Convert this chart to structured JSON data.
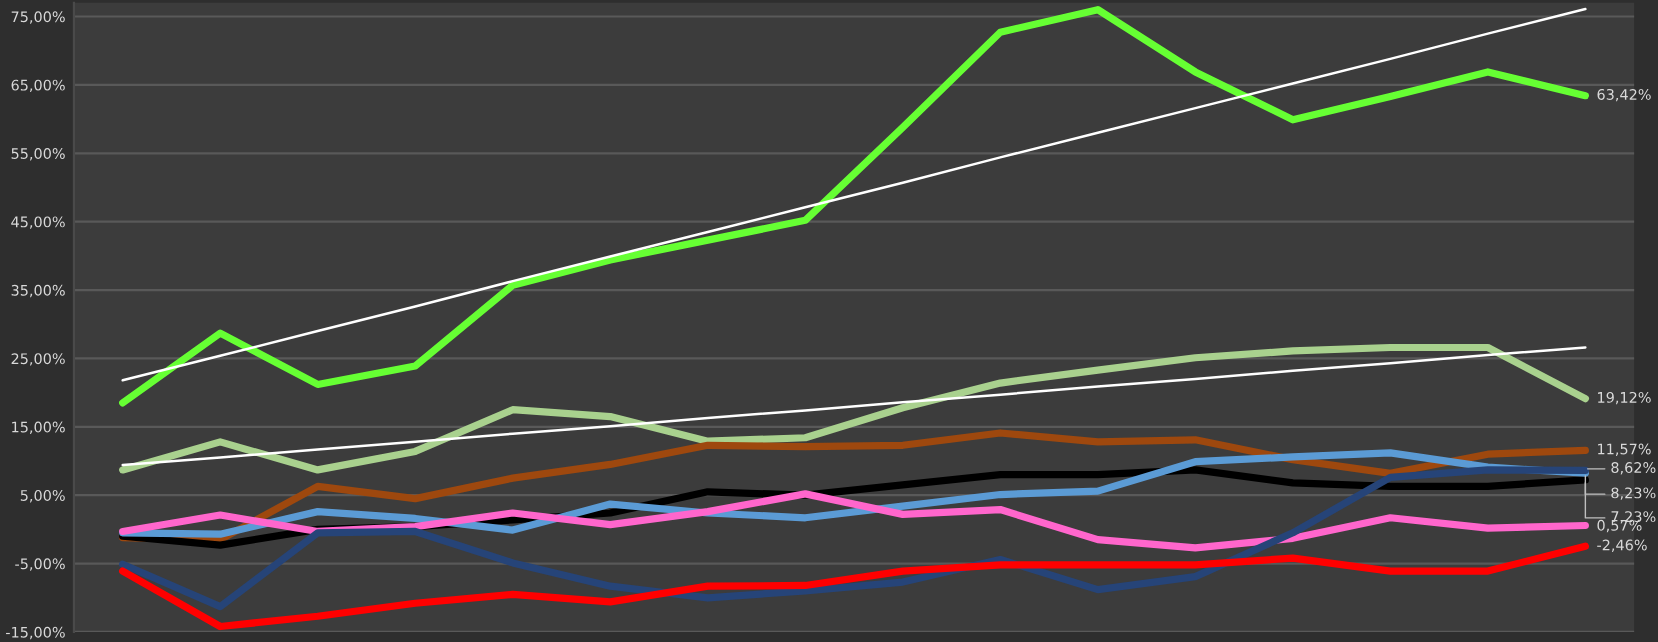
{
  "chart_data": {
    "type": "line",
    "categories": [
      null,
      null,
      null,
      null,
      null,
      null,
      null,
      null,
      null,
      null,
      null,
      null,
      null,
      null,
      null,
      null
    ],
    "series": [
      {
        "color": "#ffffff",
        "values": [
          21.8,
          25.4,
          29.0,
          32.6,
          36.3,
          39.9,
          43.5,
          47.1,
          50.7,
          54.4,
          58.0,
          61.6,
          65.2,
          68.8,
          72.5,
          76.1
        ]
      },
      {
        "color": "#ffffff",
        "values": [
          9.4,
          10.5,
          11.7,
          12.8,
          14.0,
          15.1,
          16.3,
          17.4,
          18.6,
          19.7,
          20.9,
          22.0,
          23.2,
          24.3,
          25.5,
          26.6
        ]
      },
      {
        "color": "#66ff33",
        "values": [
          18.5,
          28.7,
          21.2,
          23.9,
          35.7,
          39.4,
          42.3,
          45.2,
          58.8,
          72.7,
          76.0,
          66.9,
          59.9,
          63.3,
          66.9,
          63.42
        ],
        "value_labels": [
          null,
          null,
          null,
          null,
          null,
          null,
          null,
          null,
          null,
          null,
          null,
          null,
          null,
          null,
          null,
          "63,42%"
        ]
      },
      {
        "color": "#a9d18e",
        "values": [
          8.7,
          12.8,
          8.7,
          11.4,
          17.5,
          16.5,
          12.9,
          13.4,
          17.8,
          21.4,
          23.3,
          25.1,
          26.1,
          26.6,
          26.6,
          19.12
        ],
        "value_labels": [
          null,
          null,
          null,
          null,
          null,
          null,
          null,
          null,
          null,
          null,
          null,
          null,
          null,
          null,
          null,
          "19,12%"
        ]
      },
      {
        "color": "#9e480e",
        "values": [
          -1.2,
          -1.5,
          6.3,
          4.5,
          7.5,
          9.5,
          12.3,
          12.1,
          12.3,
          14.1,
          12.8,
          13.1,
          10.2,
          8.2,
          11.0,
          11.57
        ],
        "value_labels": [
          null,
          null,
          null,
          null,
          null,
          null,
          null,
          null,
          null,
          null,
          null,
          null,
          null,
          null,
          null,
          "11,57%"
        ]
      },
      {
        "color": "#000000",
        "values": [
          -1.0,
          -2.3,
          0.0,
          0.4,
          1.4,
          2.4,
          5.5,
          5.0,
          6.5,
          8.0,
          8.0,
          8.7,
          6.8,
          6.3,
          6.3,
          7.23
        ],
        "value_labels": [
          null,
          null,
          null,
          null,
          null,
          null,
          null,
          null,
          null,
          null,
          null,
          null,
          null,
          null,
          null,
          "7,23%"
        ]
      },
      {
        "color": "#5b9bd5",
        "values": [
          -0.5,
          -0.7,
          2.6,
          1.6,
          -0.1,
          3.7,
          2.4,
          1.7,
          3.4,
          5.1,
          5.6,
          9.9,
          10.6,
          11.2,
          9.1,
          8.23
        ],
        "value_labels": [
          null,
          null,
          null,
          null,
          null,
          null,
          null,
          null,
          null,
          null,
          null,
          null,
          null,
          null,
          null,
          "8,23%"
        ]
      },
      {
        "color": "#ff66cc",
        "values": [
          -0.3,
          2.1,
          -0.3,
          0.4,
          2.4,
          0.7,
          2.6,
          5.2,
          2.2,
          2.9,
          -1.5,
          -2.7,
          -1.3,
          1.7,
          0.2,
          0.57
        ],
        "value_labels": [
          null,
          null,
          null,
          null,
          null,
          null,
          null,
          null,
          null,
          null,
          null,
          null,
          null,
          null,
          null,
          "0,57%"
        ]
      },
      {
        "color": "#264478",
        "values": [
          -5.1,
          -11.3,
          -0.5,
          -0.3,
          -4.9,
          -8.3,
          -10.0,
          -9.0,
          -7.7,
          -4.4,
          -8.8,
          -6.9,
          -0.5,
          7.6,
          8.7,
          8.62
        ],
        "value_labels": [
          null,
          null,
          null,
          null,
          null,
          null,
          null,
          null,
          null,
          null,
          null,
          null,
          null,
          null,
          null,
          "8,62%"
        ]
      },
      {
        "color": "#ff0000",
        "values": [
          -6.1,
          -14.2,
          -12.7,
          -10.8,
          -9.5,
          -10.6,
          -8.3,
          -8.2,
          -6.1,
          -5.2,
          -5.2,
          -5.2,
          -4.2,
          -6.1,
          -6.1,
          -2.46
        ],
        "value_labels": [
          null,
          null,
          null,
          null,
          null,
          null,
          null,
          null,
          null,
          null,
          null,
          null,
          null,
          null,
          null,
          "-2,46%"
        ]
      }
    ],
    "ylim": [
      -15,
      77
    ],
    "yticks": [
      {
        "value": -15,
        "label": "-15,00%"
      },
      {
        "value": -5,
        "label": "-5,00%"
      },
      {
        "value": 5,
        "label": "5,00%"
      },
      {
        "value": 15,
        "label": "15,00%"
      },
      {
        "value": 25,
        "label": "25,00%"
      },
      {
        "value": 35,
        "label": "35,00%"
      },
      {
        "value": 45,
        "label": "45,00%"
      },
      {
        "value": 55,
        "label": "55,00%"
      },
      {
        "value": 65,
        "label": "65,00%"
      },
      {
        "value": 75,
        "label": "75,00%"
      }
    ],
    "grid": "y",
    "tick_labels": "y",
    "legend": false,
    "marker": "none",
    "line_style": "solid"
  }
}
